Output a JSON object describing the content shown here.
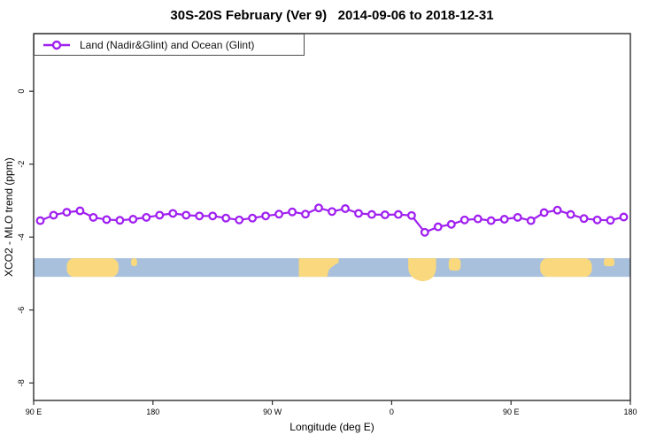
{
  "chart_data": {
    "type": "line",
    "title": "30S-20S February (Ver 9)   2014-09-06 to 2018-12-31",
    "legend_label": "Land (Nadir&Glint) and Ocean (Glint)",
    "legend_position": "top-left",
    "xlabel": "Longitude (deg E)",
    "ylabel": "XCO2 - MLO trend (ppm)",
    "xlim": [
      90,
      540
    ],
    "ylim": [
      -8.48,
      1.58
    ],
    "grid": false,
    "x_ticks": [
      {
        "pos": 90,
        "label": "90 E"
      },
      {
        "pos": 180,
        "label": "180"
      },
      {
        "pos": 270,
        "label": "90 W"
      },
      {
        "pos": 360,
        "label": "0"
      },
      {
        "pos": 450,
        "label": "90 E"
      },
      {
        "pos": 540,
        "label": "180"
      }
    ],
    "y_ticks": [
      {
        "pos": 0,
        "label": "0"
      },
      {
        "pos": -2,
        "label": "-2"
      },
      {
        "pos": -4,
        "label": "-4"
      },
      {
        "pos": -6,
        "label": "-6"
      },
      {
        "pos": -8,
        "label": "-8"
      }
    ],
    "series": [
      {
        "name": "Land (Nadir&Glint) and Ocean (Glint)",
        "color": "#A020F0",
        "marker": "open-circle",
        "x": [
          95,
          105,
          115,
          125,
          135,
          145,
          155,
          165,
          175,
          185,
          195,
          205,
          215,
          225,
          235,
          245,
          255,
          265,
          275,
          285,
          295,
          305,
          315,
          325,
          335,
          345,
          355,
          365,
          375,
          385,
          395,
          405,
          415,
          425,
          435,
          445,
          455,
          465,
          475,
          485,
          495,
          505,
          515,
          525,
          535
        ],
        "y": [
          -3.55,
          -3.4,
          -3.32,
          -3.28,
          -3.46,
          -3.52,
          -3.54,
          -3.51,
          -3.46,
          -3.4,
          -3.35,
          -3.4,
          -3.42,
          -3.42,
          -3.48,
          -3.53,
          -3.48,
          -3.42,
          -3.37,
          -3.31,
          -3.37,
          -3.2,
          -3.3,
          -3.22,
          -3.35,
          -3.38,
          -3.39,
          -3.38,
          -3.41,
          -3.87,
          -3.72,
          -3.65,
          -3.53,
          -3.5,
          -3.55,
          -3.51,
          -3.46,
          -3.55,
          -3.33,
          -3.26,
          -3.38,
          -3.49,
          -3.53,
          -3.54,
          -3.45
        ]
      }
    ],
    "map_band": {
      "description": "latitude-strip land/ocean map along x axis",
      "ocean_color": "#A8C0DB",
      "land_color": "#FAD87E",
      "y_range_ppm": [
        -4.58,
        -5.09
      ],
      "land_patches": [
        {
          "name": "australia",
          "x0": 115,
          "x1": 154,
          "shape": "blob"
        },
        {
          "name": "island-west-pacific",
          "x0": 163.5,
          "x1": 168,
          "shape": "islet"
        },
        {
          "name": "south-america",
          "x0": 290,
          "x1": 320,
          "shape": "taper-right"
        },
        {
          "name": "southern-africa",
          "x0": 372.5,
          "x1": 393.5,
          "shape": "round-bottom"
        },
        {
          "name": "madagascar",
          "x0": 403,
          "x1": 412,
          "shape": "islet-tall"
        },
        {
          "name": "australia-repeat",
          "x0": 472,
          "x1": 511,
          "shape": "blob"
        },
        {
          "name": "island-pacific-repeat",
          "x0": 520,
          "x1": 528,
          "shape": "islet"
        }
      ]
    },
    "axis_color": "#2e2e2e"
  }
}
